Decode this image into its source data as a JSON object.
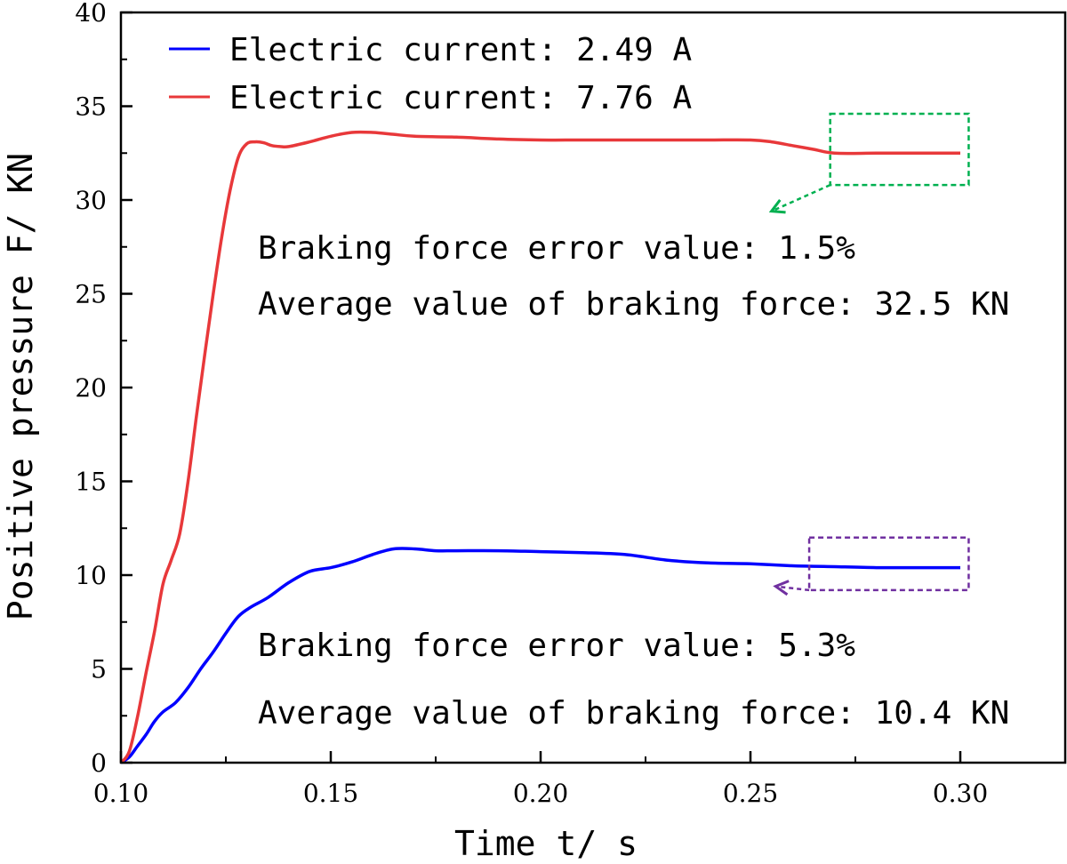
{
  "chart_data": {
    "type": "line",
    "xlabel": "Time t/ s",
    "ylabel": "Positive pressure F/ KN",
    "xlim": [
      0.1,
      0.325
    ],
    "ylim": [
      0,
      40
    ],
    "xticks": [
      0.1,
      0.15,
      0.2,
      0.25,
      0.3
    ],
    "xtick_labels": [
      "0.10",
      "0.15",
      "0.20",
      "0.25",
      "0.30"
    ],
    "yticks": [
      0,
      5,
      10,
      15,
      20,
      25,
      30,
      35,
      40
    ],
    "ytick_labels": [
      "0",
      "5",
      "10",
      "15",
      "20",
      "25",
      "30",
      "35",
      "40"
    ],
    "grid": false,
    "legend_position": "top-left",
    "series": [
      {
        "name": "Electric current: 2.49 A",
        "color": "#0000ff",
        "x": [
          0.1,
          0.102,
          0.104,
          0.106,
          0.108,
          0.11,
          0.113,
          0.116,
          0.119,
          0.122,
          0.125,
          0.128,
          0.131,
          0.135,
          0.14,
          0.145,
          0.15,
          0.155,
          0.16,
          0.165,
          0.17,
          0.175,
          0.18,
          0.19,
          0.2,
          0.21,
          0.22,
          0.23,
          0.24,
          0.25,
          0.26,
          0.27,
          0.28,
          0.29,
          0.3
        ],
        "y": [
          0,
          0.3,
          0.9,
          1.5,
          2.2,
          2.7,
          3.2,
          4.0,
          5.0,
          5.9,
          6.9,
          7.8,
          8.3,
          8.8,
          9.6,
          10.2,
          10.4,
          10.7,
          11.1,
          11.4,
          11.4,
          11.3,
          11.3,
          11.3,
          11.25,
          11.2,
          11.1,
          10.8,
          10.65,
          10.6,
          10.5,
          10.45,
          10.4,
          10.4,
          10.4
        ]
      },
      {
        "name": "Electric current: 7.76 A",
        "color": "#e8383a",
        "x": [
          0.1,
          0.102,
          0.104,
          0.106,
          0.108,
          0.11,
          0.112,
          0.114,
          0.116,
          0.118,
          0.12,
          0.122,
          0.124,
          0.126,
          0.128,
          0.13,
          0.132,
          0.134,
          0.136,
          0.138,
          0.14,
          0.145,
          0.15,
          0.155,
          0.16,
          0.165,
          0.17,
          0.18,
          0.19,
          0.2,
          0.21,
          0.22,
          0.23,
          0.24,
          0.25,
          0.255,
          0.26,
          0.265,
          0.27,
          0.28,
          0.29,
          0.3
        ],
        "y": [
          0,
          0.6,
          2.5,
          4.8,
          7.0,
          9.5,
          10.8,
          12.2,
          15.0,
          18.5,
          21.8,
          25.0,
          28.0,
          30.5,
          32.3,
          33.0,
          33.1,
          33.05,
          32.9,
          32.85,
          32.85,
          33.1,
          33.4,
          33.6,
          33.6,
          33.5,
          33.4,
          33.35,
          33.25,
          33.2,
          33.2,
          33.2,
          33.2,
          33.2,
          33.2,
          33.1,
          32.9,
          32.7,
          32.5,
          32.5,
          32.5,
          32.5
        ]
      }
    ],
    "annotations": [
      "Braking force error value: 1.5%",
      "Average value of braking force: 32.5 KN",
      "Braking force error value: 5.3%",
      "Average value of braking force: 10.4 KN"
    ],
    "highlight_boxes": [
      {
        "x": [
          0.269,
          0.302
        ],
        "y": [
          30.8,
          34.6
        ],
        "color": "#00b050",
        "arrow_to": [
          0.255,
          29.4
        ]
      },
      {
        "x": [
          0.264,
          0.302
        ],
        "y": [
          9.2,
          12.0
        ],
        "color": "#7030a0",
        "arrow_to": [
          0.256,
          9.4
        ]
      }
    ]
  }
}
